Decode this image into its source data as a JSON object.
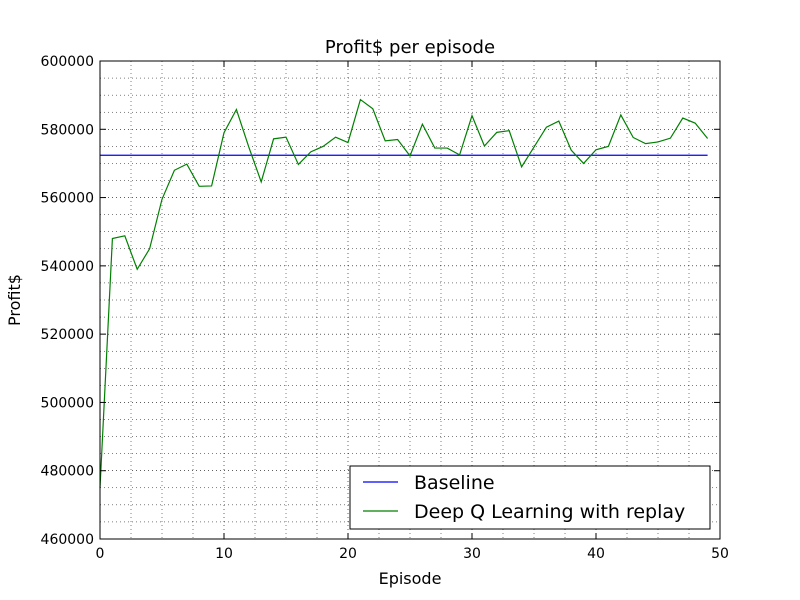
{
  "chart_data": {
    "type": "line",
    "title": "Profit$ per episode",
    "xlabel": "Episode",
    "ylabel": "Profit$",
    "xlim": [
      0,
      50
    ],
    "ylim": [
      460000,
      600000
    ],
    "xticks": [
      0,
      10,
      20,
      30,
      40,
      50
    ],
    "yticks": [
      460000,
      480000,
      500000,
      520000,
      540000,
      560000,
      580000,
      600000
    ],
    "xtick_labels": [
      "0",
      "10",
      "20",
      "30",
      "40",
      "50"
    ],
    "ytick_labels": [
      "460000",
      "480000",
      "500000",
      "520000",
      "540000",
      "560000",
      "580000",
      "600000"
    ],
    "grid": true,
    "minor_grid": true,
    "legend_position": "bottom-right",
    "series": [
      {
        "name": "Baseline",
        "color": "#0000ff",
        "x": [
          0,
          49
        ],
        "y": [
          572400,
          572400
        ]
      },
      {
        "name": "Deep Q Learning with replay",
        "color": "#008000",
        "x": [
          0,
          1,
          2,
          3,
          4,
          5,
          6,
          7,
          8,
          9,
          10,
          11,
          12,
          13,
          14,
          15,
          16,
          17,
          18,
          19,
          20,
          21,
          22,
          23,
          24,
          25,
          26,
          27,
          28,
          29,
          30,
          31,
          32,
          33,
          34,
          35,
          36,
          37,
          38,
          39,
          40,
          41,
          42,
          43,
          44,
          45,
          46,
          47,
          48,
          49
        ],
        "y": [
          475000,
          548000,
          548800,
          539000,
          545000,
          559500,
          568000,
          569800,
          563300,
          563400,
          579000,
          585800,
          574800,
          564600,
          577200,
          577700,
          569700,
          573400,
          575000,
          577700,
          576100,
          588700,
          586000,
          576600,
          577000,
          572200,
          581500,
          574500,
          574500,
          572500,
          584000,
          575100,
          579100,
          579600,
          569000,
          574800,
          580600,
          582400,
          573900,
          570000,
          574000,
          575000,
          584200,
          577600,
          575800,
          576300,
          577400,
          583300,
          581800,
          577300
        ]
      }
    ]
  }
}
